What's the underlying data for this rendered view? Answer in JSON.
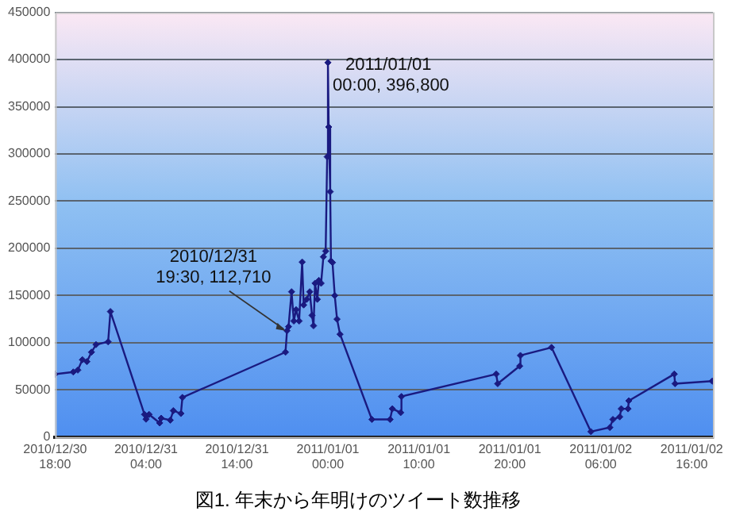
{
  "chart_data": {
    "type": "line",
    "title": "図1. 年末から年明けのツイート数推移",
    "x": [
      "2010-12-30T18:00",
      "2010-12-30T20:00",
      "2010-12-30T20:30",
      "2010-12-30T21:00",
      "2010-12-30T21:30",
      "2010-12-30T22:00",
      "2010-12-30T22:30",
      "2010-12-30T23:50",
      "2010-12-31T00:05",
      "2010-12-31T03:50",
      "2010-12-31T04:00",
      "2010-12-31T04:20",
      "2010-12-31T05:30",
      "2010-12-31T05:40",
      "2010-12-31T06:40",
      "2010-12-31T07:00",
      "2010-12-31T07:50",
      "2010-12-31T08:00",
      "2010-12-31T19:20",
      "2010-12-31T19:30",
      "2010-12-31T19:40",
      "2010-12-31T20:00",
      "2010-12-31T20:15",
      "2010-12-31T20:30",
      "2010-12-31T20:50",
      "2010-12-31T21:10",
      "2010-12-31T21:20",
      "2010-12-31T21:40",
      "2010-12-31T22:00",
      "2010-12-31T22:15",
      "2010-12-31T22:25",
      "2010-12-31T22:35",
      "2010-12-31T22:50",
      "2010-12-31T23:00",
      "2010-12-31T23:15",
      "2010-12-31T23:30",
      "2010-12-31T23:45",
      "2010-12-31T23:55",
      "2011-01-01T00:00",
      "2011-01-01T00:05",
      "2011-01-01T00:15",
      "2011-01-01T00:20",
      "2011-01-01T00:30",
      "2011-01-01T00:45",
      "2011-01-01T01:00",
      "2011-01-01T01:20",
      "2011-01-01T04:50",
      "2011-01-01T06:50",
      "2011-01-01T07:05",
      "2011-01-01T08:00",
      "2011-01-01T08:05",
      "2011-01-01T18:30",
      "2011-01-01T18:40",
      "2011-01-01T21:05",
      "2011-01-01T21:10",
      "2011-01-02T00:35",
      "2011-01-02T04:55",
      "2011-01-02T07:00",
      "2011-01-02T07:20",
      "2011-01-02T08:05",
      "2011-01-02T08:15",
      "2011-01-02T09:00",
      "2011-01-02T09:05",
      "2011-01-02T14:05",
      "2011-01-02T14:10",
      "2011-01-02T18:15"
    ],
    "series": [
      {
        "color": "#1a1a80",
        "values": [
          66700,
          69000,
          71000,
          82000,
          80000,
          90000,
          98000,
          101000,
          133000,
          24000,
          19000,
          24000,
          15000,
          20000,
          18000,
          28000,
          25000,
          42000,
          90000,
          112710,
          117000,
          154000,
          123000,
          135000,
          123000,
          185500,
          140000,
          146000,
          154000,
          129000,
          118000,
          163000,
          146000,
          166000,
          163000,
          191000,
          197000,
          297000,
          396800,
          328600,
          260000,
          186500,
          185000,
          150000,
          125000,
          109000,
          18700,
          18700,
          30000,
          26000,
          43000,
          66800,
          56600,
          75300,
          86500,
          95000,
          5800,
          10200,
          18700,
          21500,
          30000,
          30000,
          38500,
          66800,
          56600,
          59300
        ]
      }
    ],
    "xlim": [
      "2010-12-30T18:00",
      "2011-01-02T18:20"
    ],
    "xticks": [
      {
        "value": "2010-12-30T18:00",
        "label": "2010/12/30\n18:00"
      },
      {
        "value": "2010-12-31T04:00",
        "label": "2010/12/31\n04:00"
      },
      {
        "value": "2010-12-31T14:00",
        "label": "2010/12/31\n14:00"
      },
      {
        "value": "2011-01-01T00:00",
        "label": "2011/01/01\n00:00"
      },
      {
        "value": "2011-01-01T10:00",
        "label": "2011/01/01\n10:00"
      },
      {
        "value": "2011-01-01T20:00",
        "label": "2011/01/01\n20:00"
      },
      {
        "value": "2011-01-02T06:00",
        "label": "2011/01/02\n06:00"
      },
      {
        "value": "2011-01-02T16:00",
        "label": "2011/01/02\n16:00"
      }
    ],
    "ylim": [
      0,
      450000
    ],
    "yticks": [
      0,
      50000,
      100000,
      150000,
      200000,
      250000,
      300000,
      350000,
      400000,
      450000
    ],
    "grid": "y",
    "legend": false,
    "marker": "diamond",
    "line_style": "solid",
    "annotations": [
      {
        "text": "2010/12/31\n19:30, 112,710",
        "x": "2010-12-31T19:30",
        "y": 112710
      },
      {
        "text": "2011/01/01\n00:00, 396,800",
        "x": "2011-01-01T00:00",
        "y": 396800
      }
    ]
  }
}
